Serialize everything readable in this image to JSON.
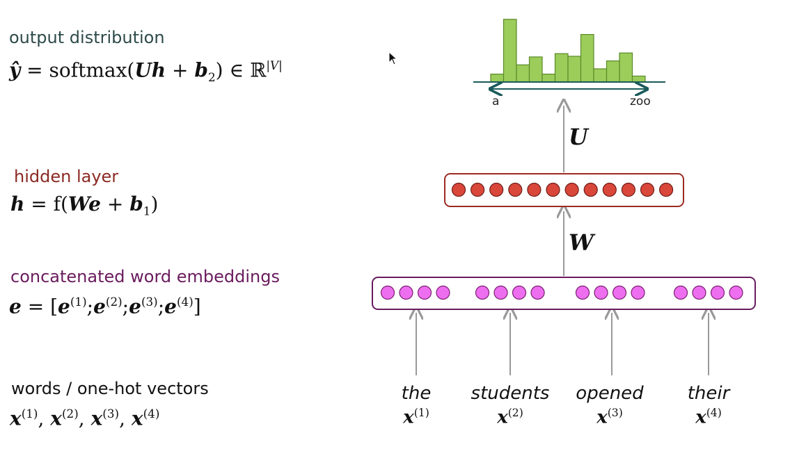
{
  "left_panel": {
    "output_label": "output distribution",
    "output_formula": {
      "lhs": "ŷ",
      "mid": " = softmax(",
      "U": "U",
      "h": "h",
      "plus": " + ",
      "b": "b",
      "b_sub": "2",
      "close": ") ∈ ℝ",
      "sup": "|V|"
    },
    "hidden_label": "hidden layer",
    "hidden_formula": {
      "h": "h",
      "mid": " = f(",
      "W": "W",
      "e": "e",
      "plus": " + ",
      "b": "b",
      "b_sub": "1",
      "close": ")"
    },
    "embed_label": "concatenated word embeddings",
    "embed_formula": {
      "e": "e",
      "eq": " = [",
      "terms": [
        "e",
        "e",
        "e",
        "e"
      ],
      "sups": [
        "(1)",
        "(2)",
        "(3)",
        "(4)"
      ],
      "sep": ";",
      "close": "]"
    },
    "words_label": "words / one-hot vectors",
    "words_formula": {
      "x": "x",
      "sups": [
        "(1)",
        "(2)",
        "(3)",
        "(4)"
      ],
      "sep": ", "
    }
  },
  "diagram": {
    "matrix_U": "U",
    "matrix_W": "W",
    "axis_start": "a",
    "axis_end": "zoo",
    "histogram_values": [
      0.12,
      0.95,
      0.26,
      0.38,
      0.12,
      0.43,
      0.39,
      0.72,
      0.2,
      0.32,
      0.44,
      0.09
    ],
    "hidden_units": 12,
    "embedding_groups": 4,
    "units_per_group": 4,
    "words": [
      {
        "word": "the",
        "x": "x",
        "sup": "(1)"
      },
      {
        "word": "students",
        "x": "x",
        "sup": "(2)"
      },
      {
        "word": "opened",
        "x": "x",
        "sup": "(3)"
      },
      {
        "word": "their",
        "x": "x",
        "sup": "(4)"
      }
    ]
  },
  "colors": {
    "output_label": "#2e4a4a",
    "hidden_label": "#8b2a22",
    "embed_label": "#6a1b5e",
    "hidden_box": "#9b2b22",
    "hidden_unit": "#d9463a",
    "embed_box": "#6a1b5e",
    "embed_unit": "#ee6ef0",
    "bar_fill": "#9ccc5a",
    "bar_stroke": "#5a8a28",
    "axis": "#1a5a5a",
    "arrow": "#999999"
  }
}
